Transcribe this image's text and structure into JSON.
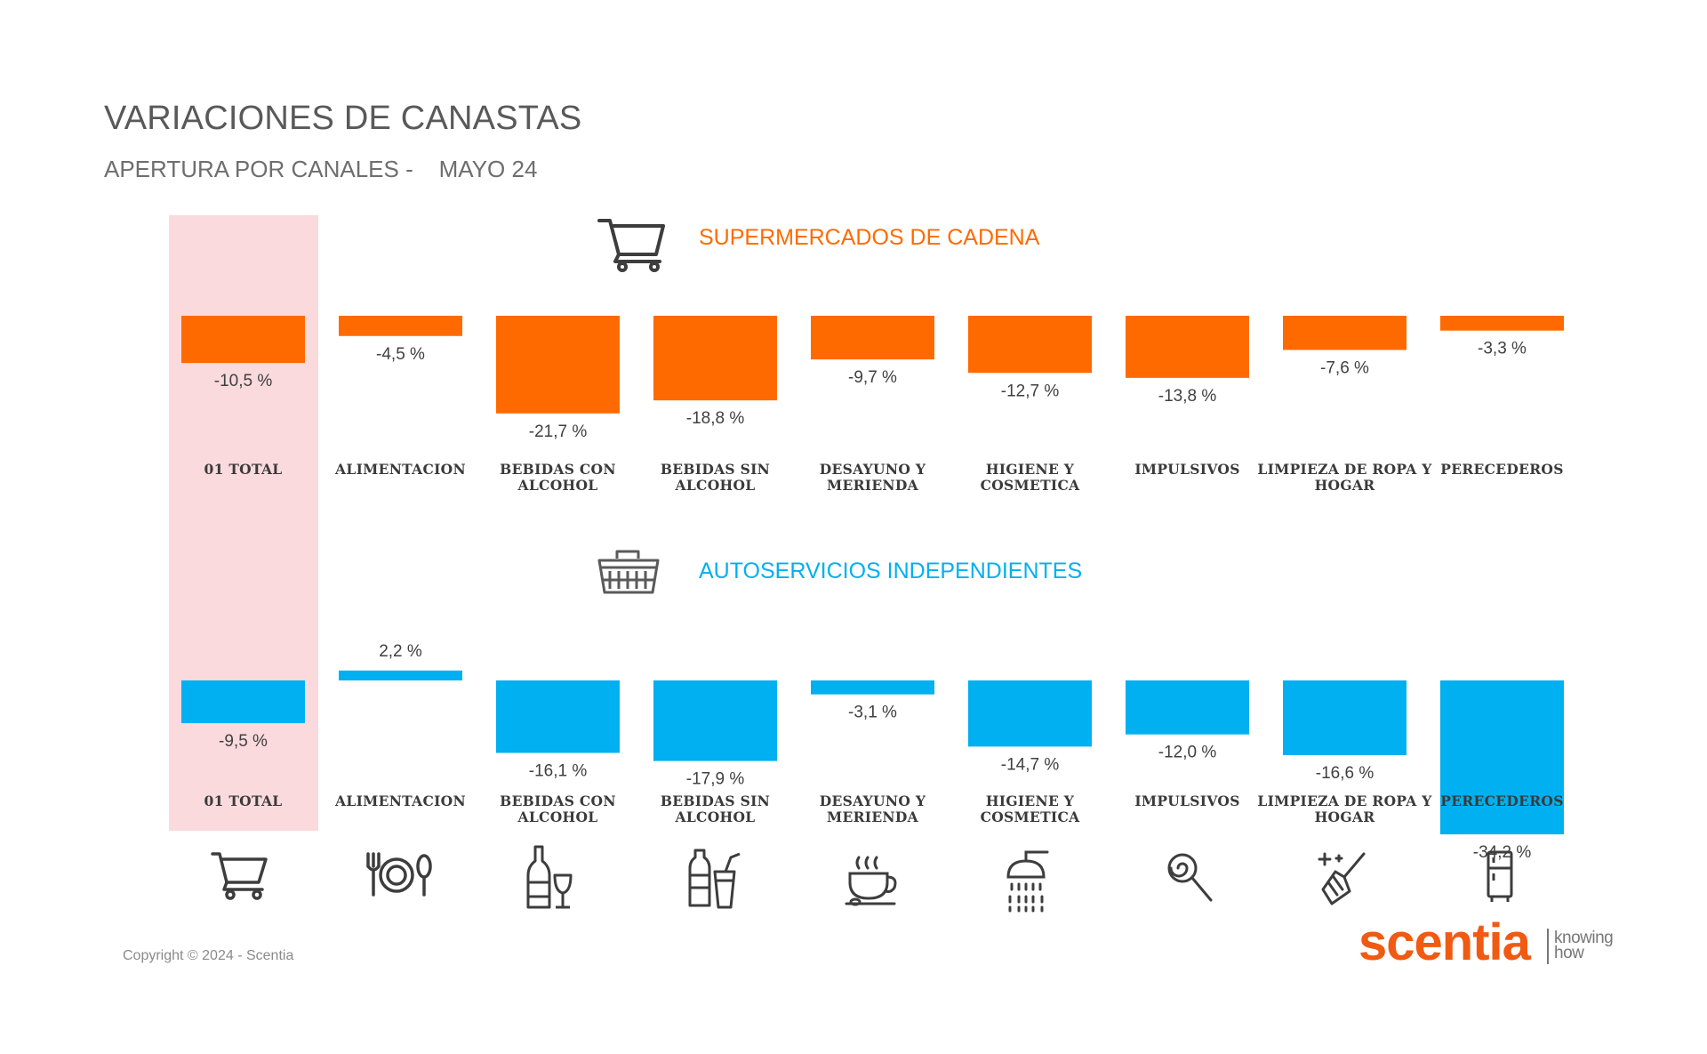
{
  "header": {
    "title": "VARIACIONES DE CANASTAS",
    "subtitle_prefix": "APERTURA POR CANALES -",
    "subtitle_period": "MAYO 24"
  },
  "colors": {
    "supermercados": "#ff6a00",
    "autoservicios": "#00b0f0",
    "highlight": "#fadadd",
    "brand": "#f05a12"
  },
  "chart_data": [
    {
      "type": "bar",
      "title": "SUPERMERCADOS DE CADENA",
      "icon": "shopping-cart-icon",
      "categories": [
        [
          "01 TOTAL"
        ],
        [
          "ALIMENTACION"
        ],
        [
          "BEBIDAS CON",
          "ALCOHOL"
        ],
        [
          "BEBIDAS SIN",
          "ALCOHOL"
        ],
        [
          "DESAYUNO Y",
          "MERIENDA"
        ],
        [
          "HIGIENE Y",
          "COSMETICA"
        ],
        [
          "IMPULSIVOS"
        ],
        [
          "LIMPIEZA DE ROPA Y",
          "HOGAR"
        ],
        [
          "PERECEDEROS"
        ]
      ],
      "values": [
        -10.5,
        -4.5,
        -21.7,
        -18.8,
        -9.7,
        -12.7,
        -13.8,
        -7.6,
        -3.3
      ],
      "labels": [
        "-10,5 %",
        "-4,5 %",
        "-21,7 %",
        "-18,8 %",
        "-9,7 %",
        "-12,7 %",
        "-13,8 %",
        "-7,6 %",
        "-3,3 %"
      ],
      "unit": "%",
      "highlighted_category": "01 TOTAL"
    },
    {
      "type": "bar",
      "title": "AUTOSERVICIOS INDEPENDIENTES",
      "icon": "shopping-basket-icon",
      "categories": [
        [
          "01 TOTAL"
        ],
        [
          "ALIMENTACION"
        ],
        [
          "BEBIDAS CON",
          "ALCOHOL"
        ],
        [
          "BEBIDAS SIN",
          "ALCOHOL"
        ],
        [
          "DESAYUNO Y",
          "MERIENDA"
        ],
        [
          "HIGIENE Y",
          "COSMETICA"
        ],
        [
          "IMPULSIVOS"
        ],
        [
          "LIMPIEZA DE ROPA Y",
          "HOGAR"
        ],
        [
          "PERECEDEROS"
        ]
      ],
      "values": [
        -9.5,
        2.2,
        -16.1,
        -17.9,
        -3.1,
        -14.7,
        -12.0,
        -16.6,
        -34.2
      ],
      "labels": [
        "-9,5 %",
        "2,2 %",
        "-16,1 %",
        "-17,9 %",
        "-3,1 %",
        "-14,7 %",
        "-12,0 %",
        "-16,6 %",
        "-34,2 %"
      ],
      "unit": "%",
      "highlighted_category": "01 TOTAL"
    }
  ],
  "category_icons": [
    "shopping-cart-icon",
    "fork-plate-spoon-icon",
    "wine-bottle-glass-icon",
    "soda-bottle-cup-icon",
    "coffee-cup-icon",
    "shower-icon",
    "lollipop-icon",
    "broom-sparkle-icon",
    "refrigerator-icon"
  ],
  "footer": {
    "copyright": "Copyright © 2024 - Scentia",
    "brand": "scentia",
    "tagline_1": "knowing",
    "tagline_2": "how"
  }
}
